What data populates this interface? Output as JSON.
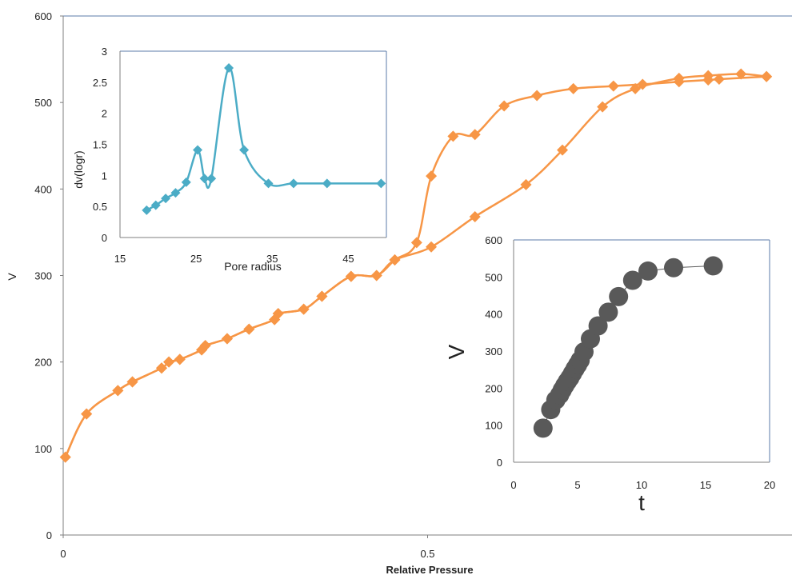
{
  "chart_data": [
    {
      "type": "line",
      "role": "main",
      "xlabel": "Relative Pressure",
      "ylabel": "V",
      "xlim": [
        0,
        1
      ],
      "ylim": [
        0,
        600
      ],
      "x_ticks": [
        0,
        0.5
      ],
      "y_ticks": [
        0,
        100,
        200,
        300,
        400,
        500,
        600
      ],
      "x_tick_labels": [
        "0",
        "0.5"
      ],
      "y_tick_labels": [
        "0",
        "100",
        "200",
        "300",
        "400",
        "500",
        "600"
      ],
      "grid": false,
      "color": "#F79646",
      "marker": "diamond",
      "series": [
        {
          "x": [
            0.003,
            0.032,
            0.075,
            0.095,
            0.135,
            0.145,
            0.16,
            0.19,
            0.195,
            0.225,
            0.255,
            0.29,
            0.295,
            0.33,
            0.355,
            0.395,
            0.43,
            0.455,
            0.505,
            0.565,
            0.635,
            0.685,
            0.74,
            0.785,
            0.845,
            0.885,
            0.93,
            0.965
          ],
          "y": [
            90,
            140,
            167,
            177,
            193,
            200,
            203,
            214,
            219,
            227,
            238,
            249,
            256,
            261,
            276,
            299,
            300,
            318,
            333,
            368,
            405,
            445,
            495,
            516,
            528,
            531,
            533,
            530
          ]
        },
        {
          "x": [
            0.003,
            0.032,
            0.075,
            0.095,
            0.135,
            0.145,
            0.16,
            0.19,
            0.195,
            0.225,
            0.255,
            0.29,
            0.295,
            0.33,
            0.355,
            0.395,
            0.43,
            0.455,
            0.485,
            0.505,
            0.535,
            0.565,
            0.605,
            0.65,
            0.7,
            0.755,
            0.795,
            0.845,
            0.885,
            0.9,
            0.965
          ],
          "y": [
            90,
            140,
            167,
            177,
            193,
            200,
            203,
            214,
            219,
            227,
            238,
            249,
            256,
            261,
            276,
            299,
            300,
            318,
            338,
            415,
            461,
            463,
            496,
            508,
            516,
            519,
            521,
            524,
            526,
            527,
            530
          ]
        }
      ]
    },
    {
      "type": "line",
      "role": "inset",
      "xlabel": "Pore radius",
      "ylabel": "dv(logr)",
      "xlim": [
        15,
        50
      ],
      "ylim": [
        0,
        3
      ],
      "x_ticks": [
        15,
        25,
        35,
        45
      ],
      "y_ticks": [
        0,
        0.5,
        1,
        1.5,
        2,
        2.5,
        3
      ],
      "x_tick_labels": [
        "15",
        "25",
        "35",
        "45"
      ],
      "y_tick_labels": [
        "0",
        "0.5",
        "1",
        "1.5",
        "2",
        "2.5",
        "3"
      ],
      "grid": false,
      "color": "#4BACC6",
      "marker": "diamond",
      "series": [
        {
          "x": [
            18.5,
            19.7,
            21,
            22.3,
            23.7,
            25.2,
            26.1,
            27.0,
            29.3,
            31.3,
            34.5,
            37.8,
            42.2,
            49.3
          ],
          "y": [
            0.44,
            0.52,
            0.63,
            0.72,
            0.89,
            1.41,
            0.95,
            0.95,
            2.73,
            1.41,
            0.87,
            0.87,
            0.87,
            0.87
          ]
        }
      ]
    },
    {
      "type": "scatter",
      "role": "inset",
      "xlabel": "t",
      "ylabel": "V",
      "xlim": [
        0,
        20
      ],
      "ylim": [
        0,
        600
      ],
      "x_ticks": [
        0,
        5,
        10,
        15,
        20
      ],
      "y_ticks": [
        0,
        100,
        200,
        300,
        400,
        500,
        600
      ],
      "x_tick_labels": [
        "0",
        "5",
        "10",
        "15",
        "20"
      ],
      "y_tick_labels": [
        "0",
        "100",
        "200",
        "300",
        "400",
        "500",
        "600"
      ],
      "grid": false,
      "color": "#595959",
      "marker": "circle",
      "series": [
        {
          "x": [
            2.3,
            2.9,
            3.3,
            3.6,
            3.8,
            4.0,
            4.2,
            4.4,
            4.6,
            4.8,
            5.0,
            5.2,
            5.5,
            6.0,
            6.6,
            7.4,
            8.2,
            9.3,
            10.5,
            12.5,
            15.6
          ],
          "y": [
            92,
            142,
            168,
            182,
            195,
            207,
            218,
            228,
            240,
            252,
            263,
            275,
            298,
            333,
            368,
            405,
            447,
            491,
            516,
            525,
            530
          ]
        }
      ]
    }
  ]
}
